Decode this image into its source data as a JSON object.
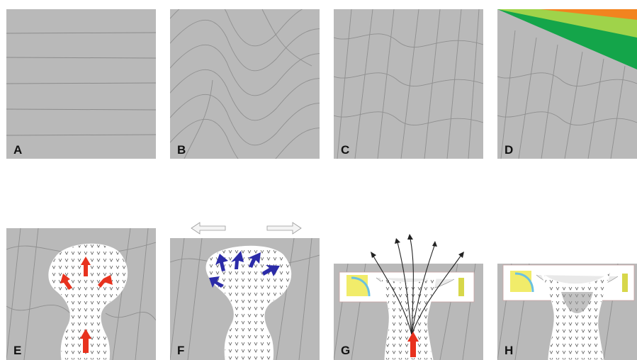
{
  "figure": {
    "panels": [
      {
        "id": "A",
        "letter": "A"
      },
      {
        "id": "B",
        "letter": "B"
      },
      {
        "id": "C",
        "letter": "C"
      },
      {
        "id": "D",
        "letter": "D"
      },
      {
        "id": "E",
        "letter": "E"
      },
      {
        "id": "F",
        "letter": "F"
      },
      {
        "id": "G",
        "letter": "G"
      },
      {
        "id": "H",
        "letter": "H"
      }
    ]
  },
  "colors": {
    "rock": "#b9b9b9",
    "rock_line": "#8f8f8f",
    "salt_fill": "#ffffff",
    "salt_tick": "#555555",
    "push_arrow": "#e8321e",
    "inward_arrow": "#2b2ba8",
    "layer_orange": "#f2841f",
    "layer_lightgreen": "#9fd34a",
    "layer_green": "#14a54a",
    "extension_arrow": "#e0e0e0"
  }
}
